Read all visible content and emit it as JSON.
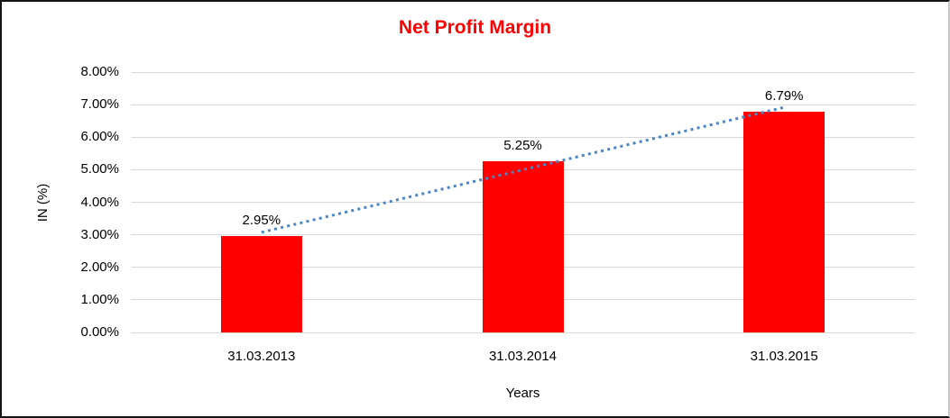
{
  "chart_data": {
    "type": "bar",
    "title": "Net Profit Margin",
    "title_color": "#ff0000",
    "categories": [
      "31.03.2013",
      "31.03.2014",
      "31.03.2015"
    ],
    "values": [
      2.95,
      5.25,
      6.79
    ],
    "data_labels": [
      "2.95%",
      "5.25%",
      "6.79%"
    ],
    "xlabel": "Years",
    "ylabel": "IN (%)",
    "ylim": [
      0,
      8
    ],
    "ytick_step": 1,
    "ytick_labels": [
      "0.00%",
      "1.00%",
      "2.00%",
      "3.00%",
      "4.00%",
      "5.00%",
      "6.00%",
      "7.00%",
      "8.00%"
    ],
    "grid": true,
    "legend": false,
    "bar_color": "#ff0000",
    "gridline_color": "#d9d9d9",
    "trendline": {
      "type": "linear",
      "style": "dotted",
      "color": "#4a86c6",
      "endpoint_values_pct": [
        3.0767,
        6.9167
      ]
    }
  }
}
